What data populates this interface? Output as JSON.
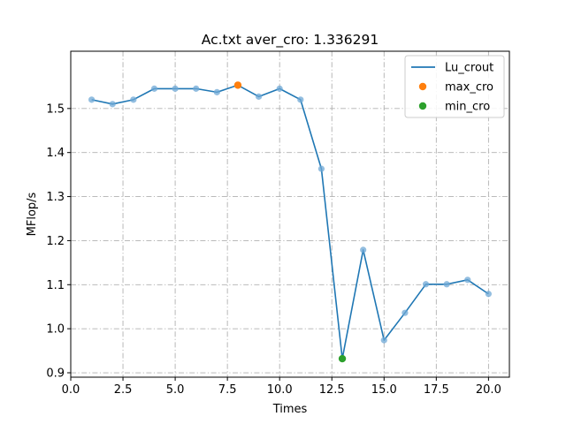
{
  "chart_data": {
    "type": "line",
    "title": "Ac.txt aver_cro: 1.336291",
    "xlabel": "Times",
    "ylabel": "MFlop/s",
    "xlim": [
      -0.0,
      21.0
    ],
    "ylim": [
      0.89,
      1.63
    ],
    "xticks": [
      0.0,
      2.5,
      5.0,
      7.5,
      10.0,
      12.5,
      15.0,
      17.5,
      20.0
    ],
    "xtick_labels": [
      "0.0",
      "2.5",
      "5.0",
      "7.5",
      "10.0",
      "12.5",
      "15.0",
      "17.5",
      "20.0"
    ],
    "yticks": [
      0.9,
      1.0,
      1.1,
      1.2,
      1.3,
      1.4,
      1.5
    ],
    "ytick_labels": [
      "0.9",
      "1.0",
      "1.1",
      "1.2",
      "1.3",
      "1.4",
      "1.5"
    ],
    "grid": true,
    "legend_position": "top-right",
    "colors": {
      "line": "#1f77b4",
      "max_marker": "#ff7f0e",
      "min_marker": "#2ca02c",
      "point": "#6fa8d6"
    },
    "series": [
      {
        "name": "Lu_crout",
        "x": [
          1,
          2,
          3,
          4,
          5,
          6,
          7,
          8,
          9,
          10,
          11,
          12,
          13,
          14,
          15,
          16,
          17,
          18,
          19,
          20
        ],
        "y": [
          1.52,
          1.51,
          1.52,
          1.545,
          1.545,
          1.545,
          1.537,
          1.553,
          1.527,
          1.545,
          1.52,
          1.363,
          0.932,
          1.179,
          0.974,
          1.036,
          1.101,
          1.101,
          1.111,
          1.079
        ]
      }
    ],
    "markers": [
      {
        "name": "max_cro",
        "x": 8,
        "y": 1.553
      },
      {
        "name": "min_cro",
        "x": 13,
        "y": 0.932
      }
    ]
  }
}
